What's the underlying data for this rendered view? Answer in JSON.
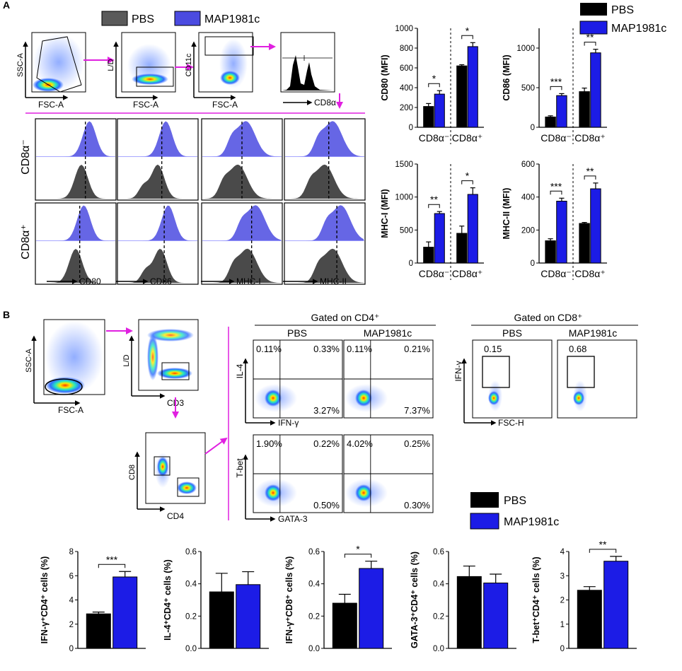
{
  "colors": {
    "pbs": "#000000",
    "map": "#1c1ce6",
    "arrow": "#e020e0",
    "mapHist": "#4b4be0",
    "pbsHist": "#4a4a4a"
  },
  "panelA": {
    "letter": "A",
    "gating": {
      "plot1": {
        "x": "FSC-A",
        "y": "SSC-A"
      },
      "plot2": {
        "x": "FSC-A",
        "y": "L/D"
      },
      "plot3": {
        "x": "FSC-A",
        "y": "CD11c"
      },
      "plot4": {
        "x": "CD8α"
      }
    },
    "legend": {
      "pbs": "PBS",
      "map": "MAP1981c"
    },
    "legendRight": {
      "pbs": "PBS",
      "map": "MAP1981c"
    },
    "hist_rows": [
      "CD8α⁻",
      "CD8α⁺"
    ],
    "hist_markers": [
      "CD80",
      "CD86",
      "MHC-I",
      "MHC-II"
    ]
  },
  "panelB": {
    "letter": "B",
    "gating": {
      "plot1": {
        "x": "FSC-A",
        "y": "SSC-A"
      },
      "plot2": {
        "x": "CD3",
        "y": "L/D"
      },
      "plot3": {
        "x": "CD4",
        "y": "CD8"
      }
    },
    "cd4_header": "Gated on CD4⁺",
    "cd8_header": "Gated on CD8⁺",
    "group_pbs": "PBS",
    "group_map": "MAP1981c",
    "quad_il4": {
      "x": "IFN-γ",
      "y": "IL-4",
      "pbs": {
        "ul": "0.11%",
        "ur": "0.33%",
        "lr": "3.27%"
      },
      "map": {
        "ul": "0.11%",
        "ur": "0.21%",
        "lr": "7.37%"
      }
    },
    "quad_tbet": {
      "x": "GATA-3",
      "y": "T-bet",
      "pbs": {
        "ul": "1.90%",
        "ur": "0.22%",
        "lr": "0.50%"
      },
      "map": {
        "ul": "4.02%",
        "ur": "0.25%",
        "lr": "0.30%"
      }
    },
    "cd8_plots": {
      "x": "FSC-H",
      "y": "IFN-γ",
      "pbs": "0.15",
      "map": "0.68"
    },
    "legend": {
      "pbs": "PBS",
      "map": "MAP1981c"
    }
  },
  "chart_data": [
    {
      "type": "bar",
      "id": "cd80",
      "ylabel": "CD80 (MFI)",
      "ylim": [
        0,
        1000
      ],
      "yticks": [
        "0",
        "200",
        "400",
        "600",
        "800",
        "1000"
      ],
      "groups": [
        "CD8α⁻",
        "CD8α⁺"
      ],
      "series": [
        {
          "name": "PBS",
          "values": [
            210,
            620
          ],
          "errors": [
            30,
            12
          ]
        },
        {
          "name": "MAP1981c",
          "values": [
            335,
            815
          ],
          "errors": [
            35,
            40
          ]
        }
      ],
      "sig": [
        "*",
        "*"
      ]
    },
    {
      "type": "bar",
      "id": "cd86",
      "ylabel": "CD86 (MFI)",
      "ylim": [
        0,
        1250
      ],
      "yticks": [
        "0",
        "500",
        "1000"
      ],
      "groups": [
        "CD8α⁻",
        "CD8α⁺"
      ],
      "series": [
        {
          "name": "PBS",
          "values": [
            130,
            450
          ],
          "errors": [
            15,
            45
          ]
        },
        {
          "name": "MAP1981c",
          "values": [
            400,
            940
          ],
          "errors": [
            25,
            45
          ]
        }
      ],
      "sig": [
        "***",
        "**"
      ]
    },
    {
      "type": "bar",
      "id": "mhc1",
      "ylabel": "MHC-I (MFI)",
      "ylim": [
        0,
        1500
      ],
      "yticks": [
        "0",
        "500",
        "1000",
        "1500"
      ],
      "groups": [
        "CD8α⁻",
        "CD8α⁺"
      ],
      "series": [
        {
          "name": "PBS",
          "values": [
            240,
            450
          ],
          "errors": [
            80,
            110
          ]
        },
        {
          "name": "MAP1981c",
          "values": [
            750,
            1040
          ],
          "errors": [
            30,
            100
          ]
        }
      ],
      "sig": [
        "**",
        "*"
      ]
    },
    {
      "type": "bar",
      "id": "mhc2",
      "ylabel": "MHC-II (MFI)",
      "ylim": [
        0,
        600
      ],
      "yticks": [
        "0",
        "200",
        "400",
        "600"
      ],
      "groups": [
        "CD8α⁻",
        "CD8α⁺"
      ],
      "series": [
        {
          "name": "PBS",
          "values": [
            135,
            240
          ],
          "errors": [
            12,
            6
          ]
        },
        {
          "name": "MAP1981c",
          "values": [
            375,
            450
          ],
          "errors": [
            18,
            35
          ]
        }
      ],
      "sig": [
        "***",
        "**"
      ]
    },
    {
      "type": "bar",
      "id": "ifng_cd4",
      "ylabel": "IFN-γ⁺CD4⁺ cells (%)",
      "ylim": [
        0,
        8
      ],
      "yticks": [
        "0",
        "2",
        "4",
        "6",
        "8"
      ],
      "series": [
        {
          "name": "PBS",
          "values": [
            2.85
          ],
          "errors": [
            0.15
          ]
        },
        {
          "name": "MAP1981c",
          "values": [
            5.9
          ],
          "errors": [
            0.45
          ]
        }
      ],
      "sig": [
        "***"
      ]
    },
    {
      "type": "bar",
      "id": "il4_cd4",
      "ylabel": "IL-4⁺CD4⁺ cells (%)",
      "ylim": [
        0,
        0.6
      ],
      "yticks": [
        "0.0",
        "0.2",
        "0.4",
        "0.6"
      ],
      "series": [
        {
          "name": "PBS",
          "values": [
            0.35
          ],
          "errors": [
            0.115
          ]
        },
        {
          "name": "MAP1981c",
          "values": [
            0.395
          ],
          "errors": [
            0.08
          ]
        }
      ],
      "sig": []
    },
    {
      "type": "bar",
      "id": "ifng_cd8",
      "ylabel": "IFN-γ⁺CD8⁺ cells (%)",
      "ylim": [
        0,
        0.6
      ],
      "yticks": [
        "0.0",
        "0.2",
        "0.4",
        "0.6"
      ],
      "series": [
        {
          "name": "PBS",
          "values": [
            0.28
          ],
          "errors": [
            0.055
          ]
        },
        {
          "name": "MAP1981c",
          "values": [
            0.495
          ],
          "errors": [
            0.045
          ]
        }
      ],
      "sig": [
        "*"
      ]
    },
    {
      "type": "bar",
      "id": "gata3_cd4",
      "ylabel": "GATA-3⁺CD4⁺ cells (%)",
      "ylim": [
        0,
        0.6
      ],
      "yticks": [
        "0.0",
        "0.2",
        "0.4",
        "0.6"
      ],
      "series": [
        {
          "name": "PBS",
          "values": [
            0.445
          ],
          "errors": [
            0.065
          ]
        },
        {
          "name": "MAP1981c",
          "values": [
            0.405
          ],
          "errors": [
            0.055
          ]
        }
      ],
      "sig": []
    },
    {
      "type": "bar",
      "id": "tbet_cd4",
      "ylabel": "T-bet⁺CD4⁺ cells (%)",
      "ylim": [
        0,
        4
      ],
      "yticks": [
        "0",
        "1",
        "2",
        "3",
        "4"
      ],
      "series": [
        {
          "name": "PBS",
          "values": [
            2.4
          ],
          "errors": [
            0.15
          ]
        },
        {
          "name": "MAP1981c",
          "values": [
            3.6
          ],
          "errors": [
            0.2
          ]
        }
      ],
      "sig": [
        "**"
      ]
    }
  ]
}
